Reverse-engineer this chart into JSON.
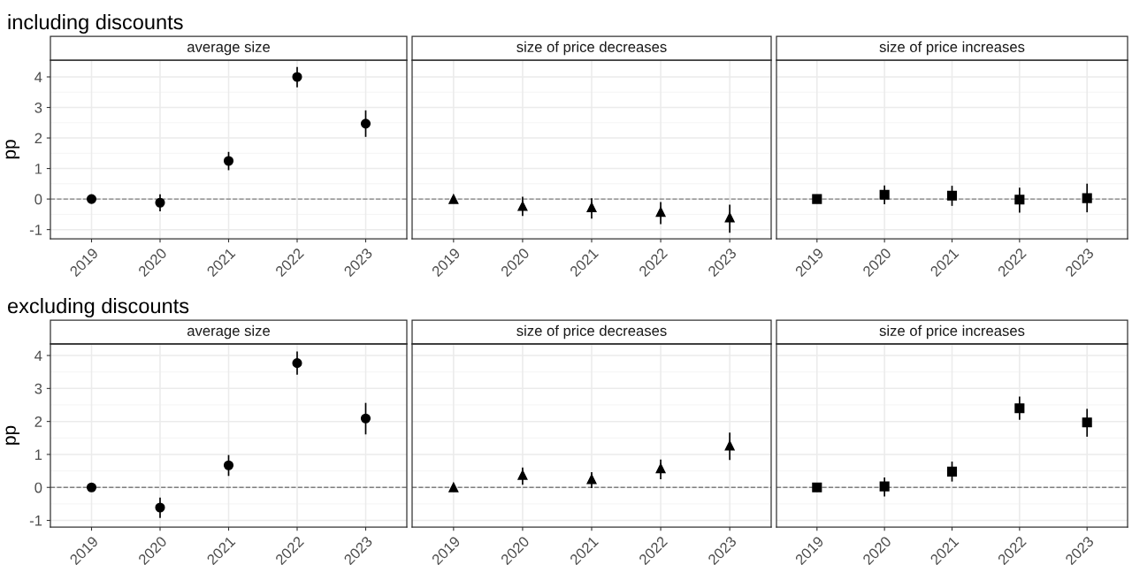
{
  "chart_data": [
    {
      "type": "scatter",
      "title": "average size",
      "annotations": [
        "including discounts"
      ],
      "ylabel": "pp",
      "categories": [
        "2019",
        "2020",
        "2021",
        "2022",
        "2023"
      ],
      "marker": "circle",
      "color": "#000000",
      "values": [
        0,
        -0.12,
        1.25,
        4.0,
        2.47
      ],
      "errors": [
        null,
        [
          -0.38,
          0.13
        ],
        [
          0.97,
          1.52
        ],
        [
          3.68,
          4.3
        ],
        [
          2.06,
          2.88
        ]
      ],
      "ylim": [
        -1.3,
        4.55
      ],
      "yticks": [
        -1,
        0,
        1,
        2,
        3,
        4
      ],
      "grid": true,
      "ref_lines": [
        {
          "axis": "y",
          "value": 0,
          "color": "#808080",
          "line_style": "dashed"
        }
      ]
    },
    {
      "type": "scatter",
      "title": "size of price decreases",
      "categories": [
        "2019",
        "2020",
        "2021",
        "2022",
        "2023"
      ],
      "marker": "triangle",
      "color": "#000000",
      "values": [
        0,
        -0.23,
        -0.27,
        -0.42,
        -0.6
      ],
      "errors": [
        null,
        [
          -0.53,
          0.05
        ],
        [
          -0.62,
          0.0
        ],
        [
          -0.8,
          -0.12
        ],
        [
          -1.08,
          -0.21
        ]
      ],
      "ylim": [
        -1.3,
        4.55
      ],
      "yticks": [
        -1,
        0,
        1,
        2,
        3,
        4
      ],
      "tick_labels": "x",
      "grid": true,
      "ref_lines": [
        {
          "axis": "y",
          "value": 0,
          "color": "#808080",
          "line_style": "dashed"
        }
      ]
    },
    {
      "type": "scatter",
      "title": "size of price increases",
      "categories": [
        "2019",
        "2020",
        "2021",
        "2022",
        "2023"
      ],
      "marker": "square",
      "color": "#000000",
      "values": [
        0,
        0.14,
        0.11,
        -0.02,
        0.03
      ],
      "errors": [
        null,
        [
          -0.15,
          0.42
        ],
        [
          -0.2,
          0.41
        ],
        [
          -0.42,
          0.35
        ],
        [
          -0.41,
          0.48
        ]
      ],
      "ylim": [
        -1.3,
        4.55
      ],
      "yticks": [
        -1,
        0,
        1,
        2,
        3,
        4
      ],
      "tick_labels": "x",
      "grid": true,
      "ref_lines": [
        {
          "axis": "y",
          "value": 0,
          "color": "#808080",
          "line_style": "dashed"
        }
      ]
    },
    {
      "type": "scatter",
      "title": "average size",
      "annotations": [
        "excluding discounts"
      ],
      "ylabel": "pp",
      "categories": [
        "2019",
        "2020",
        "2021",
        "2022",
        "2023"
      ],
      "marker": "circle",
      "color": "#000000",
      "values": [
        0,
        -0.61,
        0.67,
        3.77,
        2.09
      ],
      "errors": [
        null,
        [
          -0.9,
          -0.33
        ],
        [
          0.37,
          0.96
        ],
        [
          3.44,
          4.1
        ],
        [
          1.63,
          2.54
        ]
      ],
      "ylim": [
        -1.2,
        4.35
      ],
      "yticks": [
        -1,
        0,
        1,
        2,
        3,
        4
      ],
      "grid": true,
      "ref_lines": [
        {
          "axis": "y",
          "value": 0,
          "color": "#808080",
          "line_style": "dashed"
        }
      ]
    },
    {
      "type": "scatter",
      "title": "size of price decreases",
      "categories": [
        "2019",
        "2020",
        "2021",
        "2022",
        "2023"
      ],
      "marker": "triangle",
      "color": "#000000",
      "values": [
        0,
        0.38,
        0.25,
        0.58,
        1.27
      ],
      "errors": [
        null,
        [
          0.1,
          0.58
        ],
        [
          0.0,
          0.44
        ],
        [
          0.27,
          0.82
        ],
        [
          0.85,
          1.64
        ]
      ],
      "ylim": [
        -1.2,
        4.35
      ],
      "yticks": [
        -1,
        0,
        1,
        2,
        3,
        4
      ],
      "tick_labels": "x",
      "grid": true,
      "ref_lines": [
        {
          "axis": "y",
          "value": 0,
          "color": "#808080",
          "line_style": "dashed"
        }
      ]
    },
    {
      "type": "scatter",
      "title": "size of price increases",
      "categories": [
        "2019",
        "2020",
        "2021",
        "2022",
        "2023"
      ],
      "marker": "square",
      "color": "#000000",
      "values": [
        0,
        0.03,
        0.48,
        2.4,
        1.97
      ],
      "errors": [
        null,
        [
          -0.25,
          0.28
        ],
        [
          0.2,
          0.76
        ],
        [
          2.07,
          2.73
        ],
        [
          1.56,
          2.36
        ]
      ],
      "ylim": [
        -1.2,
        4.35
      ],
      "yticks": [
        -1,
        0,
        1,
        2,
        3,
        4
      ],
      "tick_labels": "x",
      "grid": true,
      "ref_lines": [
        {
          "axis": "y",
          "value": 0,
          "color": "#808080",
          "line_style": "dashed"
        }
      ]
    }
  ]
}
